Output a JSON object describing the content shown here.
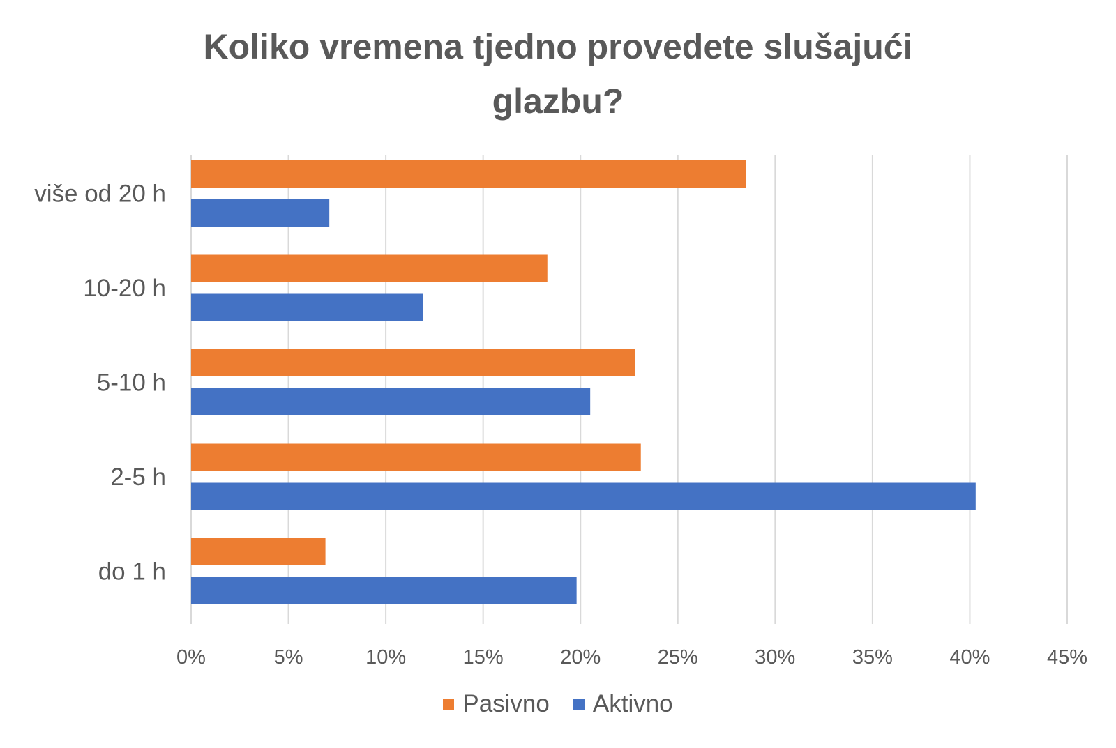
{
  "chart_data": {
    "type": "bar",
    "orientation": "horizontal",
    "title_lines": [
      "Koliko vremena tjedno provedete slušajući",
      "glazbu?"
    ],
    "categories": [
      "više od 20 h",
      "10-20 h",
      "5-10 h",
      "2-5 h",
      "do 1 h"
    ],
    "series": [
      {
        "name": "Pasivno",
        "color": "#ED7D31",
        "values": [
          28.5,
          18.3,
          22.8,
          23.1,
          6.9
        ]
      },
      {
        "name": "Aktivno",
        "color": "#4472C4",
        "values": [
          7.1,
          11.9,
          20.5,
          40.3,
          19.8
        ]
      }
    ],
    "x_ticks": [
      "0%",
      "5%",
      "10%",
      "15%",
      "20%",
      "25%",
      "30%",
      "35%",
      "40%",
      "45%"
    ],
    "xlim": [
      0,
      45
    ],
    "unit": "%",
    "grid": true,
    "legend_position": "bottom"
  }
}
